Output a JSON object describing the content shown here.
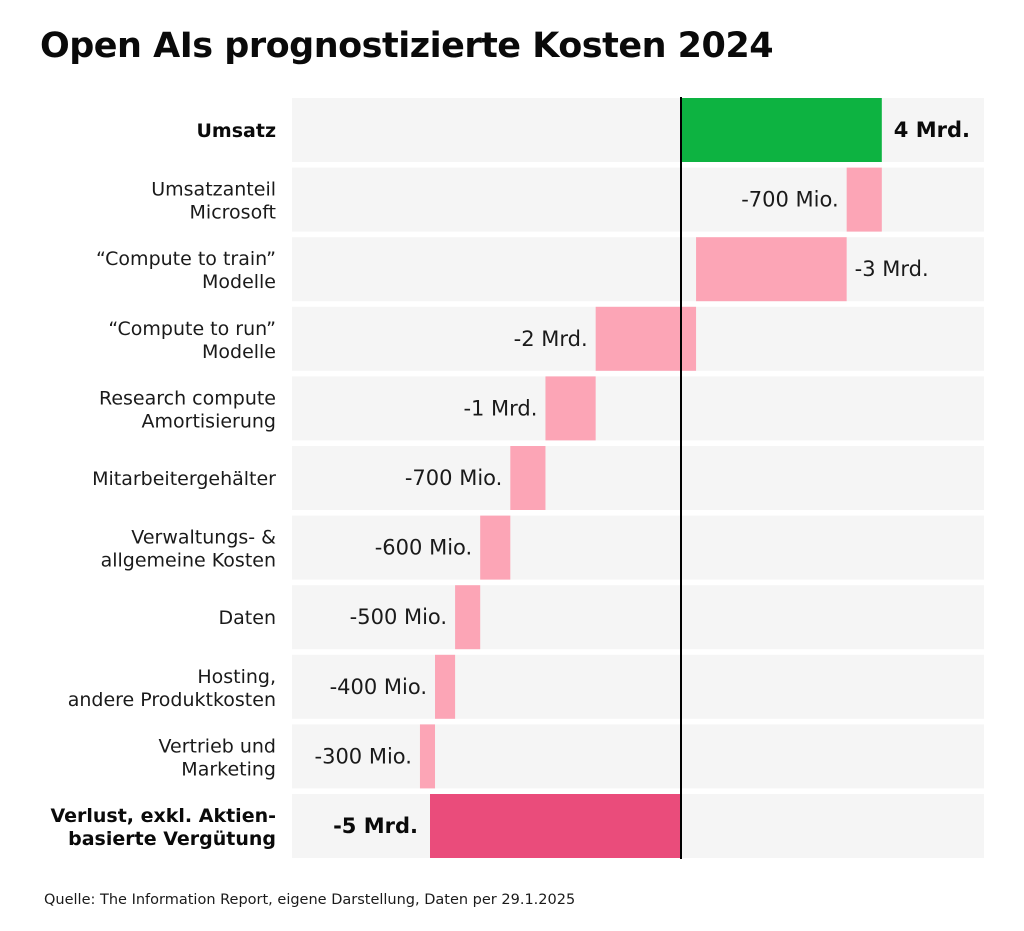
{
  "title": "Open AIs prognostizierte Kosten 2024",
  "source": "Quelle: The Information Report, eigene Darstellung, Daten per 29.1.2025",
  "colors": {
    "row_background": "#f5f5f5",
    "revenue": "#0db341",
    "cost": "#fca5b6",
    "loss": "#ea4c7b",
    "zero_line": "#000000"
  },
  "chart_data": {
    "type": "bar",
    "subtype": "waterfall",
    "orientation": "horizontal",
    "title": "Open AIs prognostizierte Kosten 2024",
    "unit": "Mrd. USD",
    "xlabel": "",
    "ylabel": "",
    "grid": false,
    "legend": "none",
    "xlim": [
      -5,
      4
    ],
    "categories": [
      [
        "Umsatz"
      ],
      [
        "Umsatzanteil",
        "Microsoft"
      ],
      [
        "“Compute to train”",
        "Modelle"
      ],
      [
        "“Compute to run”",
        "Modelle"
      ],
      [
        "Research compute",
        "Amortisierung"
      ],
      [
        "Mitarbeitergehälter"
      ],
      [
        "Verwaltungs- &",
        "allgemeine Kosten"
      ],
      [
        "Daten"
      ],
      [
        "Hosting,",
        "andere Produktkosten"
      ],
      [
        "Vertrieb und",
        "Marketing"
      ],
      [
        "Verlust, exkl. Aktien-",
        "basierte Vergütung"
      ]
    ],
    "values": [
      4.0,
      -0.7,
      -3.0,
      -2.0,
      -1.0,
      -0.7,
      -0.6,
      -0.5,
      -0.4,
      -0.3,
      -5.0
    ],
    "kinds": [
      "total",
      "delta",
      "delta",
      "delta",
      "delta",
      "delta",
      "delta",
      "delta",
      "delta",
      "delta",
      "total"
    ],
    "value_labels": [
      "4 Mrd.",
      "-700 Mio.",
      "-3 Mrd.",
      "-2 Mrd.",
      "-1 Mrd.",
      "-700 Mio.",
      "-600 Mio.",
      "-500 Mio.",
      "-400 Mio.",
      "-300 Mio.",
      "-5 Mrd."
    ],
    "bold": [
      true,
      false,
      false,
      false,
      false,
      false,
      false,
      false,
      false,
      false,
      true
    ]
  }
}
